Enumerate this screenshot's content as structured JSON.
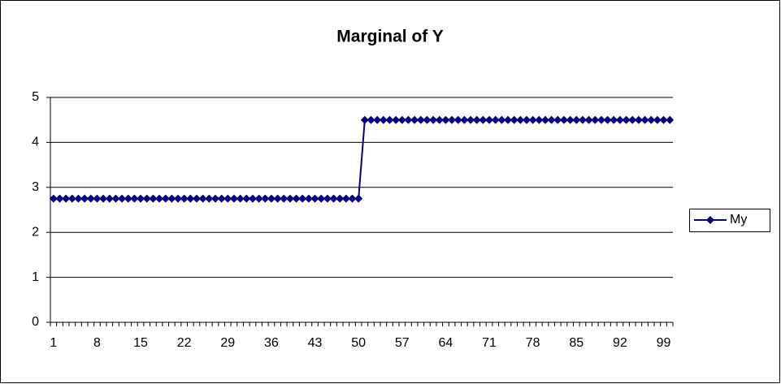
{
  "chart_data": {
    "type": "line",
    "title": "Marginal of Y",
    "categories": [
      "1",
      null,
      null,
      null,
      null,
      null,
      null,
      "8",
      null,
      null,
      null,
      null,
      null,
      null,
      "15",
      null,
      null,
      null,
      null,
      null,
      null,
      "22",
      null,
      null,
      null,
      null,
      null,
      null,
      "29",
      null,
      null,
      null,
      null,
      null,
      null,
      "36",
      null,
      null,
      null,
      null,
      null,
      null,
      "43",
      null,
      null,
      null,
      null,
      null,
      null,
      "50",
      null,
      null,
      null,
      null,
      null,
      null,
      "57",
      null,
      null,
      null,
      null,
      null,
      null,
      "64",
      null,
      null,
      null,
      null,
      null,
      null,
      "71",
      null,
      null,
      null,
      null,
      null,
      null,
      "78",
      null,
      null,
      null,
      null,
      null,
      null,
      "85",
      null,
      null,
      null,
      null,
      null,
      null,
      "92",
      null,
      null,
      null,
      null,
      null,
      null,
      "99",
      null
    ],
    "series": [
      {
        "name": "My",
        "color": "#000080",
        "values": [
          2.75,
          2.75,
          2.75,
          2.75,
          2.75,
          2.75,
          2.75,
          2.75,
          2.75,
          2.75,
          2.75,
          2.75,
          2.75,
          2.75,
          2.75,
          2.75,
          2.75,
          2.75,
          2.75,
          2.75,
          2.75,
          2.75,
          2.75,
          2.75,
          2.75,
          2.75,
          2.75,
          2.75,
          2.75,
          2.75,
          2.75,
          2.75,
          2.75,
          2.75,
          2.75,
          2.75,
          2.75,
          2.75,
          2.75,
          2.75,
          2.75,
          2.75,
          2.75,
          2.75,
          2.75,
          2.75,
          2.75,
          2.75,
          2.75,
          2.75,
          4.5,
          4.5,
          4.5,
          4.5,
          4.5,
          4.5,
          4.5,
          4.5,
          4.5,
          4.5,
          4.5,
          4.5,
          4.5,
          4.5,
          4.5,
          4.5,
          4.5,
          4.5,
          4.5,
          4.5,
          4.5,
          4.5,
          4.5,
          4.5,
          4.5,
          4.5,
          4.5,
          4.5,
          4.5,
          4.5,
          4.5,
          4.5,
          4.5,
          4.5,
          4.5,
          4.5,
          4.5,
          4.5,
          4.5,
          4.5,
          4.5,
          4.5,
          4.5,
          4.5,
          4.5,
          4.5,
          4.5,
          4.5,
          4.5,
          4.5
        ]
      }
    ],
    "ylim": [
      0,
      5
    ],
    "yticks": [
      0,
      1,
      2,
      3,
      4,
      5
    ],
    "grid": true,
    "legend": "right"
  }
}
